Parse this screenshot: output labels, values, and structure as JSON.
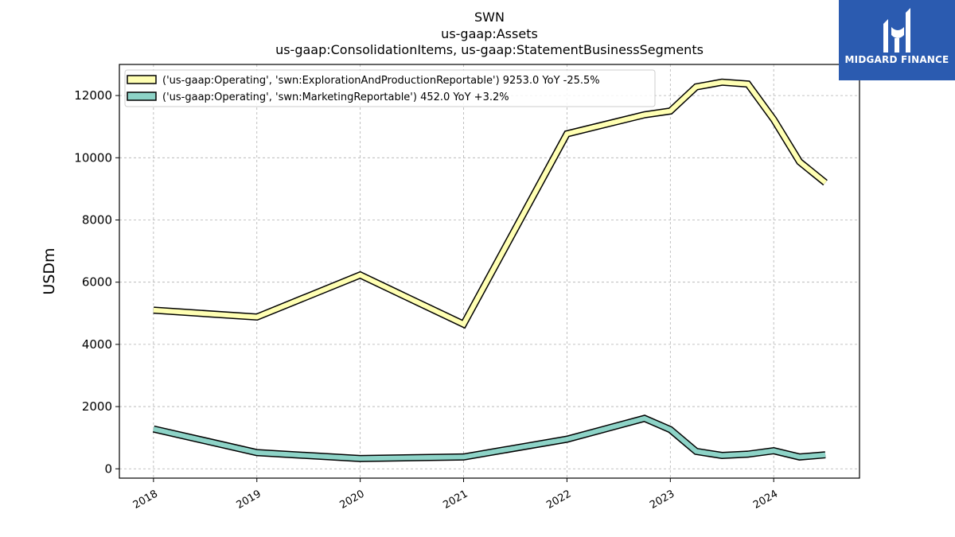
{
  "chart_data": {
    "type": "line",
    "title": [
      "SWN",
      "us-gaap:Assets",
      "us-gaap:ConsolidationItems, us-gaap:StatementBusinessSegments"
    ],
    "ylabel": "USDm",
    "xlabel": "",
    "ylim": [
      -300,
      13000
    ],
    "xlim": [
      2017.67,
      2024.83
    ],
    "yticks": [
      0,
      2000,
      4000,
      6000,
      8000,
      10000,
      12000
    ],
    "ytick_labels": [
      "0",
      "2000",
      "4000",
      "6000",
      "8000",
      "10000",
      "12000"
    ],
    "xticks": [
      2018,
      2019,
      2020,
      2021,
      2022,
      2023,
      2024
    ],
    "xtick_labels": [
      "2018",
      "2019",
      "2020",
      "2021",
      "2022",
      "2023",
      "2024"
    ],
    "grid": true,
    "legend_position": "top-left",
    "series": [
      {
        "name": "('us-gaap:Operating', 'swn:ExplorationAndProductionReportable') 9253.0 YoY -25.5%",
        "color": "#ffffb3",
        "x": [
          2018.0,
          2019.0,
          2020.0,
          2021.0,
          2022.0,
          2022.75,
          2023.0,
          2023.25,
          2023.5,
          2023.75,
          2024.0,
          2024.25,
          2024.5
        ],
        "y": [
          5100,
          4880,
          6230,
          4650,
          10770,
          11380,
          11500,
          12280,
          12430,
          12370,
          11230,
          9870,
          9200
        ]
      },
      {
        "name": "('us-gaap:Operating', 'swn:MarketingReportable') 452.0 YoY +3.2%",
        "color": "#8dd3c7",
        "x": [
          2018.0,
          2019.0,
          2020.0,
          2021.0,
          2022.0,
          2022.75,
          2023.0,
          2023.25,
          2023.5,
          2023.75,
          2024.0,
          2024.25,
          2024.5
        ],
        "y": [
          1280,
          520,
          330,
          380,
          950,
          1620,
          1260,
          560,
          430,
          470,
          580,
          380,
          450
        ]
      }
    ]
  },
  "logo": {
    "text": "MIDGARD FINANCE",
    "bg_color": "#2b5bb0"
  }
}
